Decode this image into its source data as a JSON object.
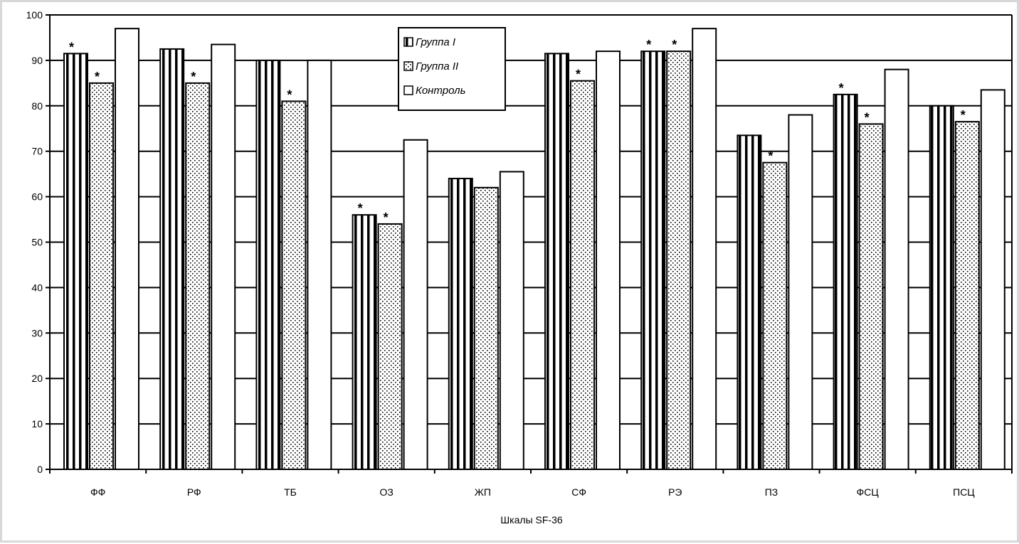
{
  "chart_data": {
    "type": "bar",
    "xlabel": "Шкалы SF-36",
    "ylabel": "",
    "ylim": [
      0,
      100
    ],
    "yticks": [
      0,
      10,
      20,
      30,
      40,
      50,
      60,
      70,
      80,
      90,
      100
    ],
    "grid": true,
    "legend_position": "top-center",
    "categories": [
      "ФФ",
      "РФ",
      "ТБ",
      "ОЗ",
      "ЖП",
      "СФ",
      "РЭ",
      "ПЗ",
      "ФСЦ",
      "ПСЦ"
    ],
    "series": [
      {
        "name": "Группа I",
        "pattern": "vertical-stripes",
        "values": [
          91.5,
          92.5,
          90,
          56,
          64,
          91.5,
          92,
          73.5,
          82.5,
          80
        ],
        "significant": [
          true,
          false,
          false,
          true,
          false,
          false,
          true,
          false,
          true,
          false
        ]
      },
      {
        "name": "Группа II",
        "pattern": "dots",
        "values": [
          85,
          85,
          81,
          54,
          62,
          85.5,
          92,
          67.5,
          76,
          76.5
        ],
        "significant": [
          true,
          true,
          true,
          true,
          false,
          true,
          true,
          true,
          true,
          true
        ]
      },
      {
        "name": "Контроль",
        "pattern": "white",
        "values": [
          97,
          93.5,
          90,
          72.5,
          65.5,
          92,
          97,
          78,
          88,
          83.5
        ],
        "significant": [
          false,
          false,
          false,
          false,
          false,
          false,
          false,
          false,
          false,
          false
        ]
      }
    ],
    "marker_symbol": "*"
  }
}
